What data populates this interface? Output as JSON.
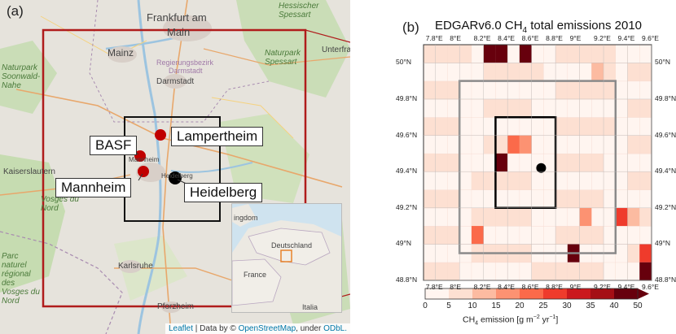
{
  "panel_a": {
    "tag": "(a)",
    "cities": {
      "frankfurt": "Frankfurt am",
      "main": "Main",
      "mainz": "Mainz",
      "regierungsbezirk": "Regierungsbezirk",
      "darmstadt_bez": "Darmstadt",
      "darmstadt": "Darmstadt",
      "kaiserslautern": "Kaiserslautern",
      "karlsruhe": "Karlsruhe",
      "pforzheim": "Pforzheim",
      "mannheim_small": "Mannheim",
      "heidelberg_small": "Heidelberg",
      "naturpark_spessart": "Naturpark Spessart",
      "hessischer_spessart": "Hessischer Spessart",
      "naturpark_soonwald": "Naturpark Soonwald-Nahe",
      "vosges_du_nord": "Vosges du Nord",
      "parc_naturel": "Parc naturel régional des Vosges du Nord",
      "unterfra": "Unterfra"
    },
    "callouts": {
      "basf": "BASF",
      "lampertheim": "Lampertheim",
      "mannheim": "Mannheim",
      "heidelberg": "Heidelberg"
    },
    "inset": {
      "kingdom": "ingdom",
      "deutschland": "Deutschland",
      "france": "France",
      "italia": "Italia"
    },
    "attribution": {
      "leaflet": "Leaflet",
      "sep": " | Data by © ",
      "osm": "OpenStreetMap",
      "under": ", under ",
      "odbl": "ODbL."
    },
    "colors": {
      "outer_box": "#b01c1c",
      "site_marker": "#c00000",
      "receptor": "#000000"
    }
  },
  "panel_b": {
    "tag": "(b)",
    "title_prefix": "EDGARv6.0 CH",
    "title_sub": "4",
    "title_suffix": " total emissions 2010",
    "x_ticks": [
      "7.8°E",
      "8°E",
      "8.2°E",
      "8.4°E",
      "8.6°E",
      "8.8°E",
      "9°E",
      "9.2°E",
      "9.4°E",
      "9.6°E"
    ],
    "y_ticks": [
      "50°N",
      "49.8°N",
      "49.6°N",
      "49.4°N",
      "49.2°N",
      "49°N",
      "48.8°N"
    ],
    "colorbar": {
      "ticks": [
        "0",
        "5",
        "10",
        "15",
        "20",
        "25",
        "30",
        "35",
        "40",
        "50"
      ],
      "label_prefix": "CH",
      "label_sub": "4",
      "label_mid": " emission  [g m",
      "label_exp1": "−2",
      "label_mid2": " yr",
      "label_exp2": "−1",
      "label_end": "]",
      "colors": [
        "#fff5f0",
        "#fde0d2",
        "#fcbba1",
        "#fc9272",
        "#fb6a4a",
        "#ef3b2c",
        "#cb181d",
        "#a50f15",
        "#67000d"
      ]
    }
  },
  "chart_data": {
    "type": "heatmap",
    "title": "EDGARv6.0 CH4 total emissions 2010",
    "x_range": [
      7.7,
      9.6
    ],
    "y_range": [
      48.8,
      50.1
    ],
    "xlabel": "",
    "ylabel": "",
    "colorbar_label": "CH4 emission [g m−2 yr−1]",
    "colorbar_levels": [
      0,
      5,
      10,
      15,
      20,
      25,
      30,
      35,
      40,
      50
    ],
    "grid": "on",
    "cells_lon_lat_value": [
      [
        8.25,
        50.05,
        48
      ],
      [
        8.35,
        50.05,
        48
      ],
      [
        8.55,
        50.05,
        45
      ],
      [
        8.45,
        49.55,
        24
      ],
      [
        8.35,
        49.45,
        42
      ],
      [
        8.55,
        49.55,
        18
      ],
      [
        9.35,
        49.15,
        28
      ],
      [
        9.05,
        49.15,
        16
      ],
      [
        9.45,
        49.15,
        10
      ],
      [
        8.15,
        49.05,
        22
      ],
      [
        8.95,
        48.95,
        45
      ],
      [
        9.55,
        48.85,
        45
      ],
      [
        9.55,
        48.95,
        28
      ],
      [
        7.75,
        49.45,
        8
      ],
      [
        9.15,
        49.95,
        12
      ],
      [
        9.25,
        49.95,
        8
      ],
      [
        8.15,
        49.35,
        6
      ],
      [
        8.65,
        48.85,
        7
      ]
    ],
    "inner_box": {
      "lon": [
        8.3,
        8.8
      ],
      "lat": [
        49.2,
        49.7
      ]
    },
    "outer_box": {
      "lon": [
        8.0,
        9.3
      ],
      "lat": [
        48.95,
        49.9
      ]
    },
    "receptor_point": {
      "lon": 8.68,
      "lat": 49.42
    }
  }
}
